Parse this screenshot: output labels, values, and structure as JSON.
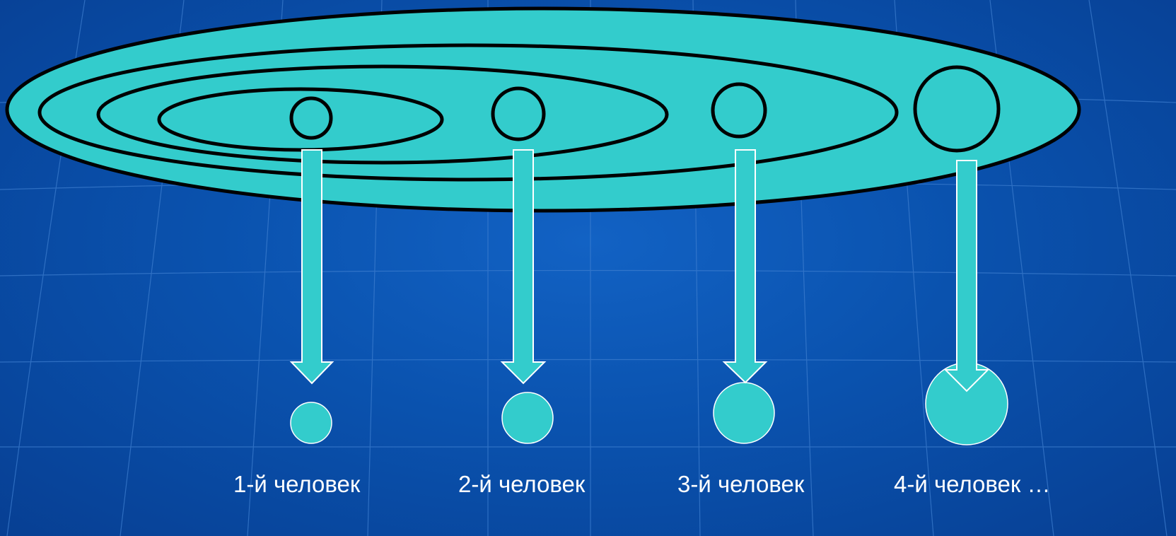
{
  "colors": {
    "background": "#0a52ae",
    "grid_line": "#3f7fd0",
    "fill": "#33cccc",
    "outline": "#000000",
    "arrow_outline": "#ffffff",
    "text": "#ffffff"
  },
  "labels": [
    "1-й человек",
    "2-й человек",
    "3-й человек",
    "4-й человек …"
  ]
}
